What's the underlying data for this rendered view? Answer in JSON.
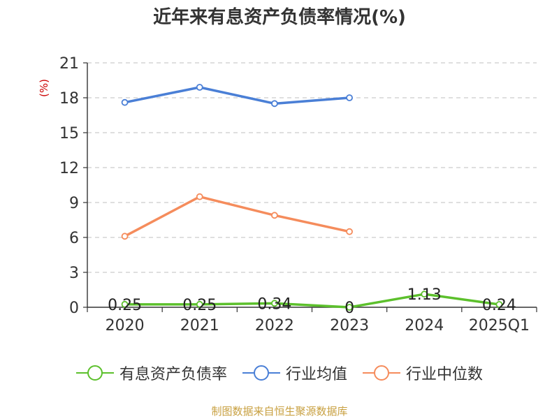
{
  "source_text": "制图数据来自恒生聚源数据库",
  "chart_data": {
    "type": "line",
    "title": "近年来有息资产负债率情况(%)",
    "ylabel": "(%)",
    "xlabel": "",
    "categories": [
      "2020",
      "2021",
      "2022",
      "2023",
      "2024",
      "2025Q1"
    ],
    "ylim": [
      0,
      21
    ],
    "yticks": [
      0,
      3,
      6,
      9,
      12,
      15,
      18,
      21
    ],
    "grid": true,
    "legend_position": "bottom",
    "series": [
      {
        "name": "有息资产负债率",
        "color": "#5cc02c",
        "values": [
          0.25,
          0.25,
          0.34,
          0,
          1.13,
          0.24
        ],
        "labels": [
          "0.25",
          "0.25",
          "0.34",
          "0",
          "1.13",
          "0.24"
        ]
      },
      {
        "name": "行业均值",
        "color": "#4a7fd6",
        "values": [
          17.6,
          18.9,
          17.5,
          18.0,
          null,
          null
        ]
      },
      {
        "name": "行业中位数",
        "color": "#f58c5c",
        "values": [
          6.1,
          9.5,
          7.9,
          6.5,
          null,
          null
        ]
      }
    ]
  }
}
